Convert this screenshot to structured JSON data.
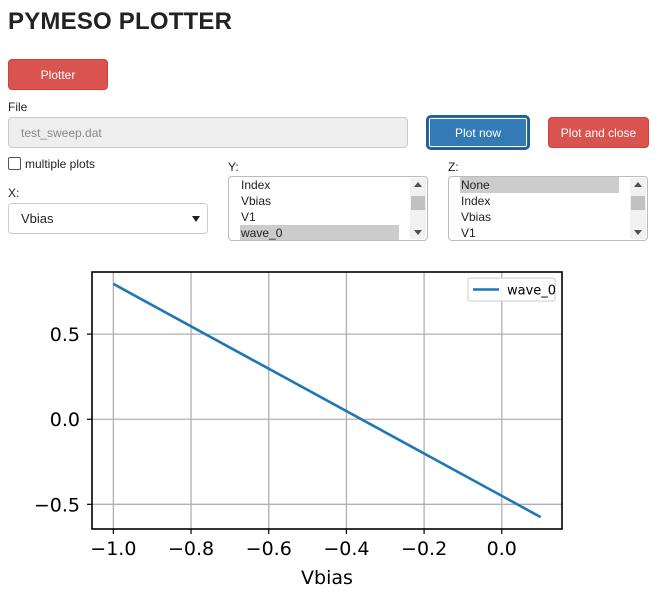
{
  "app": {
    "title": "PYMESO PLOTTER"
  },
  "buttons": {
    "plotter": "Plotter",
    "plot_now": "Plot now",
    "plot_and_close": "Plot and close"
  },
  "file": {
    "label": "File",
    "value": "test_sweep.dat"
  },
  "multiple_plots": {
    "label": "multiple plots",
    "checked": false
  },
  "x": {
    "label": "X:",
    "selected": "Vbias"
  },
  "y": {
    "label": "Y:",
    "options": [
      "Index",
      "Vbias",
      "V1",
      "wave_0"
    ],
    "selected": "wave_0"
  },
  "z": {
    "label": "Z:",
    "options": [
      "None",
      "Index",
      "Vbias",
      "V1"
    ],
    "selected": "None"
  },
  "colors": {
    "accent_red": "#d9534f",
    "accent_blue": "#337ab7",
    "series_line": "#1f77b4"
  },
  "chart_data": {
    "type": "line",
    "xlabel": "Vbias",
    "ylabel": "",
    "xlim": [
      -1.055,
      0.155
    ],
    "ylim": [
      -0.645,
      0.865
    ],
    "xticks": [
      -1.0,
      -0.8,
      -0.6,
      -0.4,
      -0.2,
      0.0
    ],
    "xtick_labels": [
      "−1.0",
      "−0.8",
      "−0.6",
      "−0.4",
      "−0.2",
      "0.0"
    ],
    "yticks": [
      -0.5,
      0.0,
      0.5
    ],
    "ytick_labels": [
      "−0.5",
      "0.0",
      "0.5"
    ],
    "grid": true,
    "legend": "top-right",
    "series": [
      {
        "name": "wave_0",
        "x": [
          -1.0,
          0.1
        ],
        "y": [
          0.795,
          -0.575
        ]
      }
    ]
  }
}
